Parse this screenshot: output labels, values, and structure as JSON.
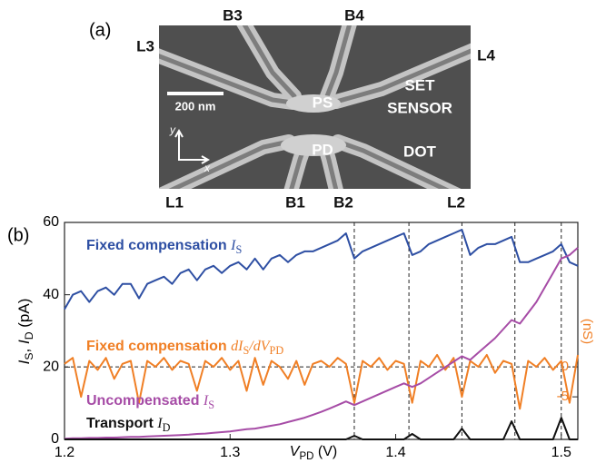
{
  "panel_a": {
    "label": "(a)",
    "gates": [
      "B3",
      "B4",
      "L3",
      "L4",
      "L1",
      "B1",
      "B2",
      "L2"
    ],
    "islands": [
      "PS",
      "PD"
    ],
    "sensor_label": [
      "SET",
      "SENSOR"
    ],
    "dot_label": "DOT",
    "scale_bar": "200 nm",
    "axes": [
      "y",
      "x"
    ]
  },
  "chart_data": {
    "type": "line",
    "panel_label": "(b)",
    "x_label": [
      "V",
      "PD",
      " (V)"
    ],
    "y_label": [
      "I",
      "S",
      ", ",
      "I",
      "D",
      " (pA)"
    ],
    "y2_label": "(nS)",
    "x": [
      1.2,
      1.205,
      1.21,
      1.215,
      1.22,
      1.225,
      1.23,
      1.235,
      1.24,
      1.245,
      1.25,
      1.255,
      1.26,
      1.265,
      1.27,
      1.275,
      1.28,
      1.285,
      1.29,
      1.295,
      1.3,
      1.305,
      1.31,
      1.315,
      1.32,
      1.325,
      1.33,
      1.335,
      1.34,
      1.345,
      1.35,
      1.355,
      1.36,
      1.365,
      1.37,
      1.375,
      1.38,
      1.385,
      1.39,
      1.395,
      1.4,
      1.405,
      1.41,
      1.415,
      1.42,
      1.425,
      1.43,
      1.435,
      1.44,
      1.445,
      1.45,
      1.455,
      1.46,
      1.465,
      1.47,
      1.475,
      1.48,
      1.485,
      1.49,
      1.495,
      1.5,
      1.505,
      1.51
    ],
    "xlim": [
      1.2,
      1.51
    ],
    "xticks": [
      1.2,
      1.3,
      1.4,
      1.5
    ],
    "ylim": [
      0,
      60
    ],
    "yticks": [
      0,
      20,
      40,
      60
    ],
    "y2lim": [
      -12.1,
      24.1
    ],
    "y2ticks": [
      0,
      -5
    ],
    "vlines": [
      1.375,
      1.408,
      1.44,
      1.472,
      1.5
    ],
    "y2_reference_line": 0,
    "series": [
      {
        "name": "Fixed compensation",
        "symbol": [
          "I",
          "S"
        ],
        "color": "#2e4fa3",
        "values": [
          36,
          40,
          41,
          38,
          41,
          42,
          40,
          43,
          43,
          39,
          43,
          44,
          45,
          43,
          46,
          47,
          44,
          47,
          48,
          46,
          48,
          49,
          47,
          50,
          47,
          50,
          51,
          49,
          51,
          52,
          52,
          53,
          54,
          55,
          57,
          50,
          52,
          53,
          54,
          55,
          56,
          57,
          51,
          52,
          54,
          55,
          56,
          57,
          58,
          51,
          53,
          54,
          54,
          55,
          56,
          49,
          49,
          50,
          51,
          52,
          54,
          49,
          48
        ]
      },
      {
        "name": "Fixed compensation",
        "symbol": [
          "dI",
          "S",
          "/dV",
          "PD"
        ],
        "color": "#f07f25",
        "axis": "y2",
        "values": [
          0.5,
          1.5,
          -5,
          1,
          -0.5,
          1.5,
          -2,
          0.5,
          1,
          -6,
          1,
          0,
          1.5,
          -0.5,
          1,
          0.5,
          -4,
          1,
          0,
          1.5,
          -0.5,
          1,
          -4,
          1.5,
          -3,
          1,
          0,
          -2,
          1,
          -3,
          0.5,
          1,
          0,
          1.5,
          0.5,
          -6,
          1,
          0,
          1.5,
          -0.5,
          1,
          0.5,
          -6,
          1,
          0,
          2,
          -0.5,
          1.5,
          -5,
          1,
          0,
          2,
          -1,
          1,
          0.5,
          -7,
          1,
          0,
          1.5,
          -0.5,
          1,
          -6,
          2
        ]
      },
      {
        "name": "Uncompensated",
        "symbol": [
          "I",
          "S"
        ],
        "color": "#a64ca6",
        "values": [
          0.2,
          0.3,
          0.3,
          0.4,
          0.4,
          0.5,
          0.5,
          0.6,
          0.7,
          0.7,
          0.8,
          0.9,
          1,
          1.1,
          1.2,
          1.3,
          1.5,
          1.6,
          1.8,
          2,
          2.2,
          2.5,
          2.8,
          3,
          3.4,
          3.8,
          4.2,
          4.8,
          5.4,
          6,
          6.8,
          7.6,
          8.5,
          9.5,
          10.5,
          9.5,
          10.5,
          11.5,
          12.5,
          13.5,
          14.5,
          15.5,
          14.5,
          15.5,
          17,
          18.5,
          20,
          21.5,
          23,
          22,
          24,
          26,
          28,
          30.5,
          33,
          32,
          35,
          38,
          42,
          46,
          50,
          51,
          53
        ]
      },
      {
        "name": "Transport",
        "symbol": [
          "I",
          "D"
        ],
        "color": "#111111",
        "values": [
          0,
          0,
          0,
          0,
          0,
          0,
          0,
          0,
          0,
          0,
          0,
          0,
          0,
          0,
          0,
          0,
          0,
          0,
          0,
          0,
          0,
          0,
          0,
          0,
          0,
          0,
          0,
          0,
          0,
          0,
          0,
          0,
          0,
          0,
          0,
          1,
          0,
          0,
          0,
          0,
          0,
          0,
          1.5,
          0,
          0,
          0,
          0,
          0,
          3,
          0,
          0,
          0,
          0,
          0,
          5,
          0,
          0,
          0,
          0,
          0,
          6,
          0,
          0
        ]
      }
    ]
  }
}
